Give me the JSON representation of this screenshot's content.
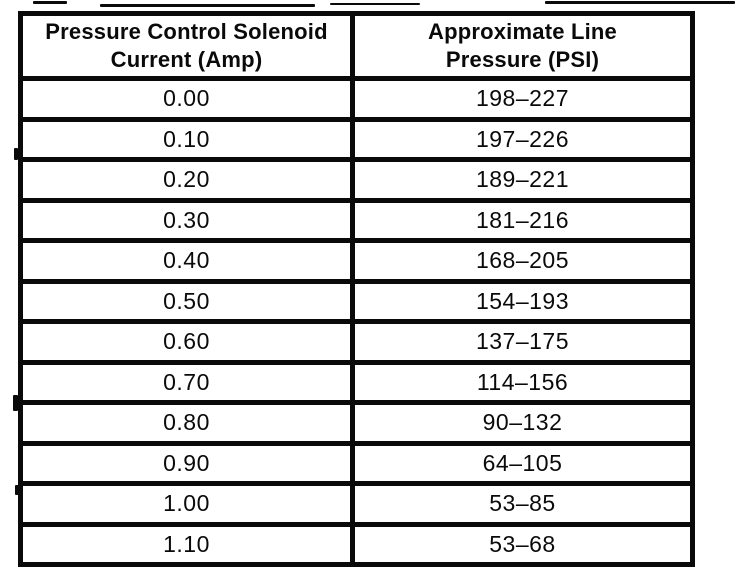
{
  "table": {
    "headers": [
      "Pressure Control Solenoid\nCurrent (Amp)",
      "Approximate Line\nPressure (PSI)"
    ],
    "rows": [
      {
        "current": "0.00",
        "pressure": "198–227"
      },
      {
        "current": "0.10",
        "pressure": "197–226"
      },
      {
        "current": "0.20",
        "pressure": "189–221"
      },
      {
        "current": "0.30",
        "pressure": "181–216"
      },
      {
        "current": "0.40",
        "pressure": "168–205"
      },
      {
        "current": "0.50",
        "pressure": "154–193"
      },
      {
        "current": "0.60",
        "pressure": "137–175"
      },
      {
        "current": "0.70",
        "pressure": "114–156"
      },
      {
        "current": "0.80",
        "pressure": "90–132"
      },
      {
        "current": "0.90",
        "pressure": "64–105"
      },
      {
        "current": "1.00",
        "pressure": "53–85"
      },
      {
        "current": "1.10",
        "pressure": "53–68"
      }
    ]
  },
  "colors": {
    "ink": "#0a0a0a",
    "paper": "#ffffff"
  }
}
